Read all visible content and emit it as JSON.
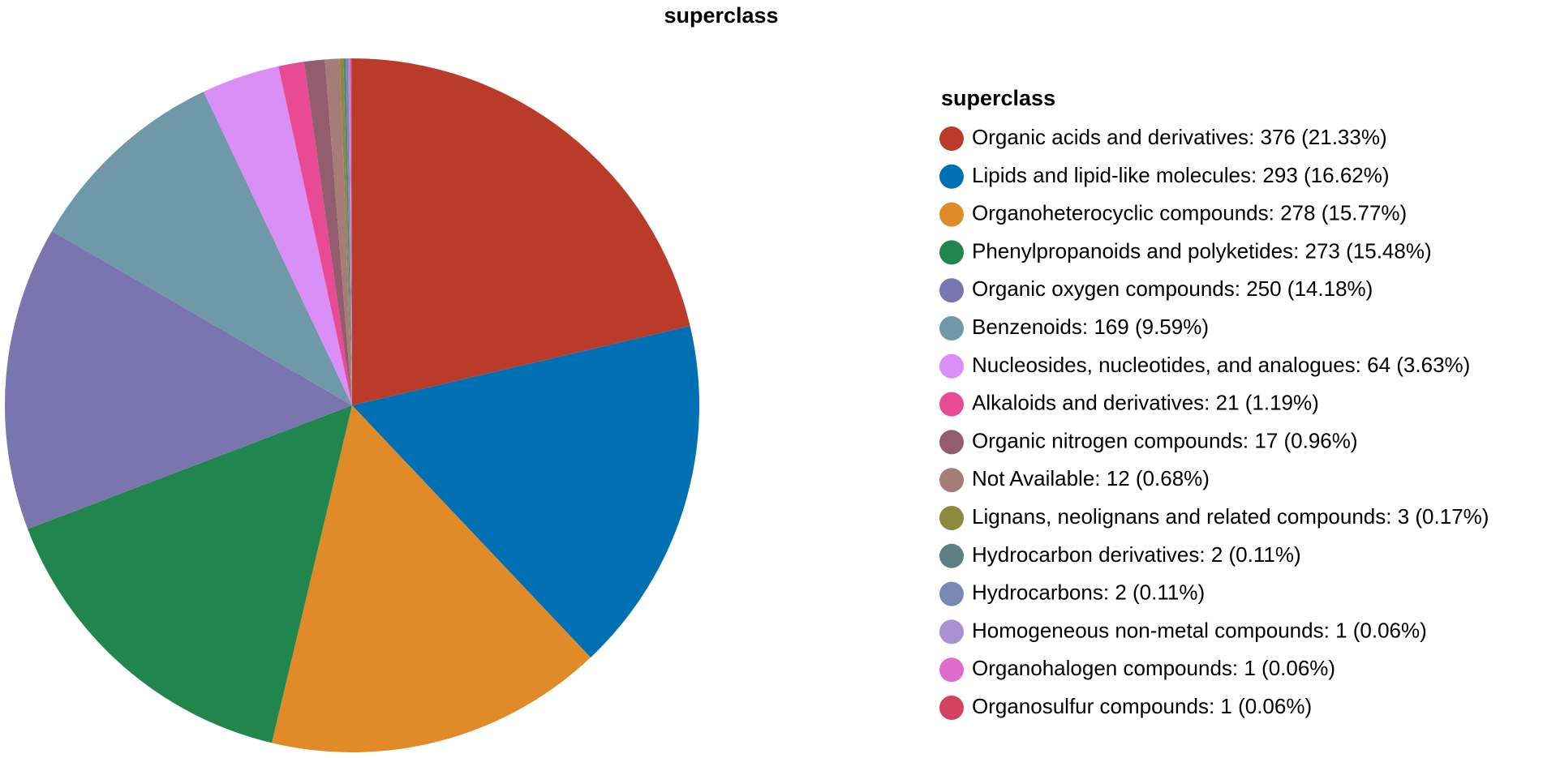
{
  "chart_data": {
    "type": "pie",
    "title": "superclass",
    "legend_title": "superclass",
    "categories": [
      "Organic acids and derivatives",
      "Lipids and lipid-like molecules",
      "Organoheterocyclic compounds",
      "Phenylpropanoids and polyketides",
      "Organic oxygen compounds",
      "Benzenoids",
      "Nucleosides, nucleotides, and analogues",
      "Alkaloids and derivatives",
      "Organic nitrogen compounds",
      "Not Available",
      "Lignans, neolignans and related compounds",
      "Hydrocarbon derivatives",
      "Hydrocarbons",
      "Homogeneous non-metal compounds",
      "Organohalogen compounds",
      "Organosulfur compounds"
    ],
    "values": [
      376,
      293,
      278,
      273,
      250,
      169,
      64,
      21,
      17,
      12,
      3,
      2,
      2,
      1,
      1,
      1
    ],
    "value_labels": [
      "376 (21.33%)",
      "293 (16.62%)",
      "278 (15.77%)",
      "273 (15.48%)",
      "250 (14.18%)",
      "169 (9.59%)",
      "64 (3.63%)",
      "21 (1.19%)",
      "17 (0.96%)",
      "12 (0.68%)",
      "3 (0.17%)",
      "2 (0.11%)",
      "2 (0.11%)",
      "1 (0.06%)",
      "1 (0.06%)",
      "1 (0.06%)"
    ],
    "colors": [
      "#bb3b2a",
      "#0070b3",
      "#e08a28",
      "#21864e",
      "#7a75ae",
      "#6f98a8",
      "#d98ff5",
      "#e94a94",
      "#935d6f",
      "#a67c78",
      "#8c8a3c",
      "#5b8183",
      "#7a89b3",
      "#a792cf",
      "#e06cc9",
      "#d3435f"
    ],
    "legend": "right"
  }
}
